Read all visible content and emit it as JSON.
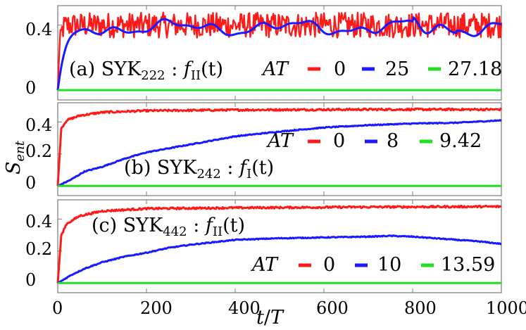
{
  "axis_labels": {
    "y_main": "S",
    "y_sub": "ent",
    "x_num": "t",
    "x_den": "T"
  },
  "colors": {
    "red": "#ff1a1a",
    "blue": "#1a1aff",
    "green": "#22dd22"
  },
  "chart_data": [
    {
      "type": "line",
      "title": "(a) SYK222 : fII(t)",
      "label_prefix": "(a) SYK",
      "label_sub": "222",
      "label_func": "f",
      "label_func_sub": "II",
      "label_arg": "(t)",
      "legend_title": "AT",
      "xlim": [
        0,
        1000
      ],
      "ylim": [
        -0.06,
        0.52
      ],
      "yticks": [
        0,
        0.4
      ],
      "ytick_labels": [
        "0",
        "0.4"
      ],
      "series": [
        {
          "name": "0",
          "color": "#ff1a1a",
          "style": "noisy",
          "mean": 0.4,
          "amp": 0.06,
          "rise": 4
        },
        {
          "name": "25",
          "color": "#1a1aff",
          "style": "wavy",
          "mean": 0.385,
          "amp": 0.035,
          "rise": 20
        },
        {
          "name": "27.18",
          "color": "#22dd22",
          "style": "flat",
          "value": 0.0
        }
      ]
    },
    {
      "type": "line",
      "title": "(b) SYK242 : fI(t)",
      "label_prefix": "(b) SYK",
      "label_sub": "242",
      "label_func": "f",
      "label_func_sub": "I",
      "label_arg": "(t)",
      "legend_title": "AT",
      "xlim": [
        0,
        1000
      ],
      "ylim": [
        -0.06,
        0.52
      ],
      "yticks": [
        0,
        0.2,
        0.4
      ],
      "ytick_labels": [
        "0",
        "0.2",
        "0.4"
      ],
      "series": [
        {
          "name": "0",
          "color": "#ff1a1a",
          "style": "sat",
          "points": [
            [
              0,
              0
            ],
            [
              8,
              0.36
            ],
            [
              20,
              0.41
            ],
            [
              50,
              0.44
            ],
            [
              100,
              0.46
            ],
            [
              200,
              0.47
            ],
            [
              400,
              0.475
            ],
            [
              700,
              0.478
            ],
            [
              1000,
              0.478
            ]
          ]
        },
        {
          "name": "8",
          "color": "#1a1aff",
          "style": "smooth",
          "points": [
            [
              0,
              0
            ],
            [
              30,
              0.04
            ],
            [
              60,
              0.09
            ],
            [
              100,
              0.12
            ],
            [
              150,
              0.17
            ],
            [
              200,
              0.21
            ],
            [
              300,
              0.26
            ],
            [
              400,
              0.31
            ],
            [
              500,
              0.34
            ],
            [
              600,
              0.365
            ],
            [
              700,
              0.38
            ],
            [
              800,
              0.39
            ],
            [
              900,
              0.395
            ],
            [
              1000,
              0.41
            ]
          ]
        },
        {
          "name": "9.42",
          "color": "#22dd22",
          "style": "flat",
          "value": 0.0
        }
      ]
    },
    {
      "type": "line",
      "title": "(c) SYK442 : fII(t)",
      "label_prefix": "(c) SYK",
      "label_sub": "442",
      "label_func": "f",
      "label_func_sub": "II",
      "label_arg": "(t)",
      "legend_title": "AT",
      "xlim": [
        0,
        1000
      ],
      "ylim": [
        -0.06,
        0.52
      ],
      "yticks": [
        0,
        0.2,
        0.4
      ],
      "ytick_labels": [
        "0",
        "0.2",
        "0.4"
      ],
      "xticks": [
        0,
        200,
        400,
        600,
        800,
        1000
      ],
      "xtick_labels": [
        "0",
        "200",
        "400",
        "600",
        "800",
        "1000"
      ],
      "series": [
        {
          "name": "0",
          "color": "#ff1a1a",
          "style": "sat",
          "points": [
            [
              0,
              0
            ],
            [
              8,
              0.3
            ],
            [
              20,
              0.37
            ],
            [
              50,
              0.42
            ],
            [
              100,
              0.45
            ],
            [
              200,
              0.465
            ],
            [
              400,
              0.47
            ],
            [
              700,
              0.475
            ],
            [
              1000,
              0.478
            ]
          ]
        },
        {
          "name": "10",
          "color": "#1a1aff",
          "style": "smooth",
          "points": [
            [
              0,
              0
            ],
            [
              30,
              0.05
            ],
            [
              60,
              0.09
            ],
            [
              100,
              0.13
            ],
            [
              150,
              0.165
            ],
            [
              200,
              0.19
            ],
            [
              250,
              0.22
            ],
            [
              300,
              0.24
            ],
            [
              400,
              0.27
            ],
            [
              500,
              0.28
            ],
            [
              600,
              0.285
            ],
            [
              700,
              0.29
            ],
            [
              750,
              0.295
            ],
            [
              800,
              0.29
            ],
            [
              850,
              0.28
            ],
            [
              900,
              0.27
            ],
            [
              950,
              0.26
            ],
            [
              1000,
              0.245
            ]
          ]
        },
        {
          "name": "13.59",
          "color": "#22dd22",
          "style": "flat",
          "value": 0.0
        }
      ]
    }
  ]
}
